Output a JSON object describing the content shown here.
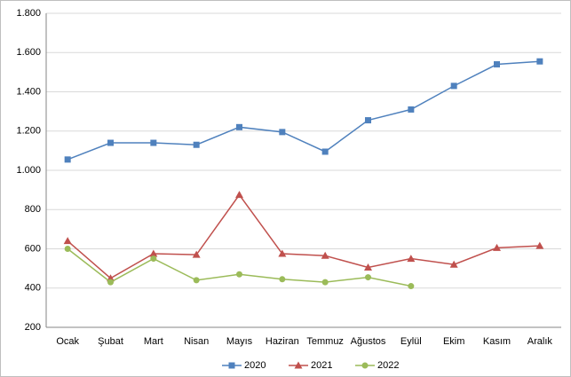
{
  "chart_data": {
    "type": "line",
    "categories": [
      "Ocak",
      "Şubat",
      "Mart",
      "Nisan",
      "Mayıs",
      "Haziran",
      "Temmuz",
      "Ağustos",
      "Eylül",
      "Ekim",
      "Kasım",
      "Aralık"
    ],
    "series": [
      {
        "name": "2020",
        "color": "#4f81bd",
        "marker": "square",
        "values": [
          1055,
          1140,
          1140,
          1130,
          1220,
          1195,
          1095,
          1255,
          1310,
          1430,
          1540,
          1555
        ]
      },
      {
        "name": "2021",
        "color": "#c0504d",
        "marker": "triangle",
        "values": [
          640,
          450,
          575,
          570,
          875,
          575,
          565,
          505,
          550,
          520,
          605,
          615
        ]
      },
      {
        "name": "2022",
        "color": "#9bbb59",
        "marker": "circle",
        "values": [
          600,
          430,
          550,
          440,
          470,
          445,
          430,
          455,
          410,
          null,
          null,
          null
        ]
      }
    ],
    "ylim": [
      200,
      1800
    ],
    "yticks": [
      200,
      400,
      600,
      800,
      {
        "value": 1000,
        "label": "1.000"
      },
      {
        "value": 1200,
        "label": "1.200"
      },
      {
        "value": 1400,
        "label": "1.400"
      },
      {
        "value": 1600,
        "label": "1.600"
      },
      {
        "value": 1800,
        "label": "1.800"
      }
    ],
    "grid": true,
    "legend": "bottom"
  }
}
